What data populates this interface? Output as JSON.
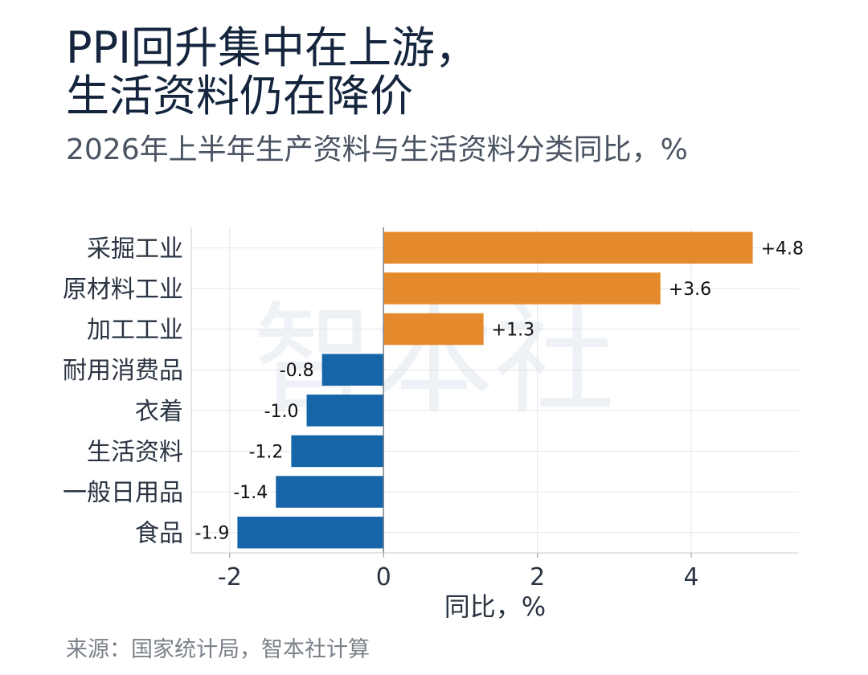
{
  "title_lines": [
    "PPI回升集中在上游，",
    "生活资料仍在降价"
  ],
  "subtitle": "2026年上半年生产资料与生活资料分类同比，%",
  "source": "来源：国家统计局，智本社计算",
  "watermark": "智本社",
  "chart_data": {
    "type": "bar",
    "orientation": "horizontal",
    "categories": [
      "采掘工业",
      "原材料工业",
      "加工工业",
      "耐用消费品",
      "衣着",
      "生活资料",
      "一般日用品",
      "食品"
    ],
    "values": [
      4.8,
      3.6,
      1.3,
      -0.8,
      -1.0,
      -1.2,
      -1.4,
      -1.9
    ],
    "value_labels": [
      "+4.8",
      "+3.6",
      "+1.3",
      "-0.8",
      "-1.0",
      "-1.2",
      "-1.4",
      "-1.9"
    ],
    "xlabel": "同比，%",
    "xticks": [
      -2,
      0,
      2,
      4
    ],
    "xlim": [
      -2.5,
      5.4
    ],
    "grid": true,
    "colors": {
      "positive": "#e58a2c",
      "negative": "#1565a8"
    }
  }
}
